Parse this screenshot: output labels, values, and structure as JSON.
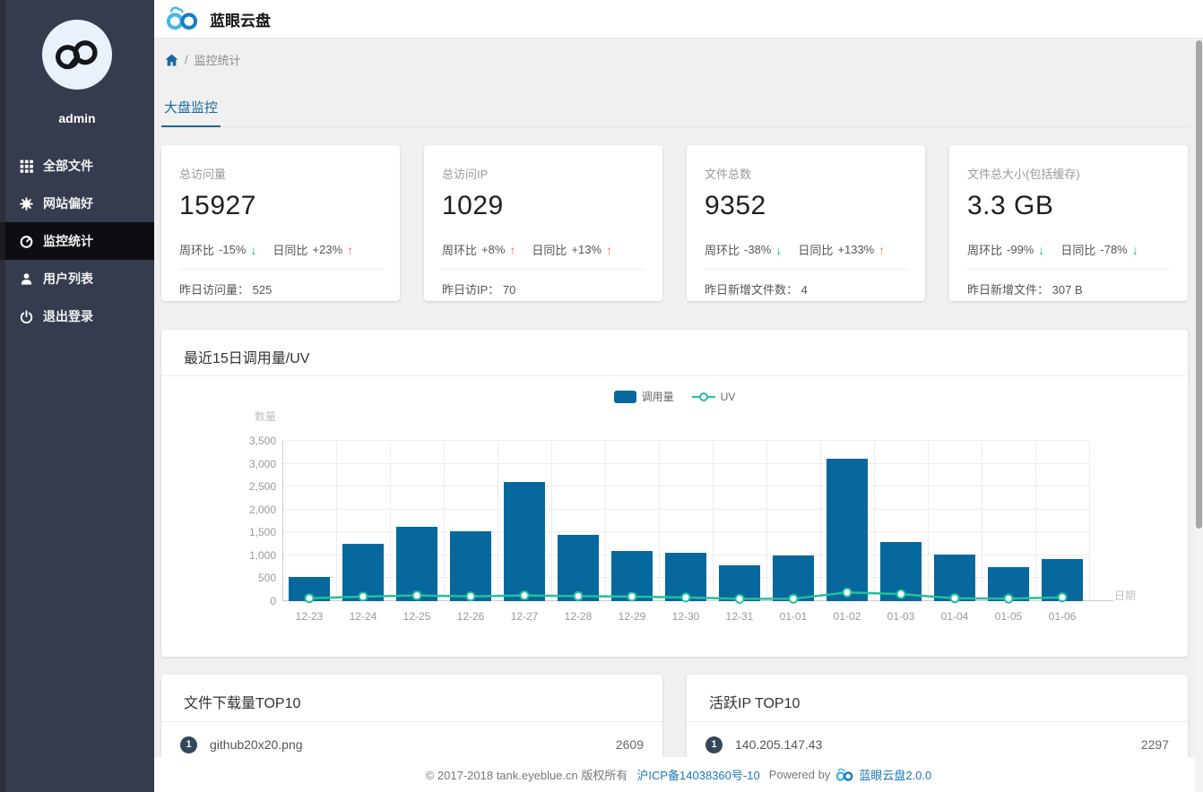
{
  "app": {
    "title": "蓝眼云盘"
  },
  "sidebar": {
    "username": "admin",
    "items": [
      {
        "label": "全部文件",
        "icon": "grid-icon",
        "active": false
      },
      {
        "label": "网站偏好",
        "icon": "gear-icon",
        "active": false
      },
      {
        "label": "监控统计",
        "icon": "gauge-icon",
        "active": true
      },
      {
        "label": "用户列表",
        "icon": "user-icon",
        "active": false
      },
      {
        "label": "退出登录",
        "icon": "power-icon",
        "active": false
      }
    ]
  },
  "breadcrumb": {
    "separator": "/",
    "current": "监控统计"
  },
  "tabs": [
    {
      "label": "大盘监控",
      "active": true
    }
  ],
  "stat_cards": [
    {
      "title": "总访问量",
      "value": "15927",
      "week_label": "周环比",
      "week_value": "-15%",
      "week_dir": "down",
      "day_label": "日同比",
      "day_value": "+23%",
      "day_dir": "up",
      "footer_label": "昨日访问量：",
      "footer_value": "525"
    },
    {
      "title": "总访问IP",
      "value": "1029",
      "week_label": "周环比",
      "week_value": "+8%",
      "week_dir": "up",
      "day_label": "日同比",
      "day_value": "+13%",
      "day_dir": "up",
      "footer_label": "昨日访IP：",
      "footer_value": "70"
    },
    {
      "title": "文件总数",
      "value": "9352",
      "week_label": "周环比",
      "week_value": "-38%",
      "week_dir": "down",
      "day_label": "日同比",
      "day_value": "+133%",
      "day_dir": "up",
      "footer_label": "昨日新增文件数：",
      "footer_value": "4"
    },
    {
      "title": "文件总大小(包括缓存)",
      "value": "3.3 GB",
      "week_label": "周环比",
      "week_value": "-99%",
      "week_dir": "down",
      "day_label": "日同比",
      "day_value": "-78%",
      "day_dir": "down",
      "footer_label": "昨日新增文件：",
      "footer_value": "307 B"
    }
  ],
  "chart_card": {
    "title": "最近15日调用量/UV"
  },
  "chart_data": {
    "type": "bar",
    "title": "最近15日调用量/UV",
    "categories": [
      "12-23",
      "12-24",
      "12-25",
      "12-26",
      "12-27",
      "12-28",
      "12-29",
      "12-30",
      "12-31",
      "01-01",
      "01-02",
      "01-03",
      "01-04",
      "01-05",
      "01-06"
    ],
    "series": [
      {
        "name": "调用量",
        "type": "bar",
        "color": "#06689c",
        "values": [
          520,
          1250,
          1620,
          1530,
          2600,
          1450,
          1100,
          1060,
          780,
          1000,
          3110,
          1300,
          1020,
          740,
          920
        ]
      },
      {
        "name": "UV",
        "type": "line",
        "color": "#25bf9e",
        "values": [
          65,
          100,
          125,
          105,
          125,
          110,
          100,
          80,
          50,
          55,
          190,
          155,
          65,
          55,
          85
        ]
      }
    ],
    "xlabel": "日期",
    "ylabel": "数量",
    "ylim": [
      0,
      3500
    ],
    "ytick_step": 500,
    "grid": true,
    "legend_position": "top-center"
  },
  "top_lists": [
    {
      "title": "文件下载量TOP10",
      "items": [
        {
          "rank": "1",
          "name": "github20x20.png",
          "value": "2609"
        }
      ]
    },
    {
      "title": "活跃IP TOP10",
      "items": [
        {
          "rank": "1",
          "name": "140.205.147.43",
          "value": "2297"
        }
      ]
    }
  ],
  "footer": {
    "copyright": "© 2017-2018 tank.eyeblue.cn 版权所有",
    "icp_link": "沪ICP备14038360号-10",
    "powered_by": "Powered by",
    "version_link": "蓝眼云盘2.0.0"
  },
  "colors": {
    "sidebar_bg": "#363c4e",
    "sidebar_active_bg": "#0d0e11",
    "accent_blue": "#17699c",
    "bar_blue": "#06689c",
    "line_teal": "#25bf9e",
    "up_orange": "#f4765f",
    "down_green": "#00b98c",
    "badge_slate": "#33475b",
    "link_blue": "#1878b9"
  }
}
